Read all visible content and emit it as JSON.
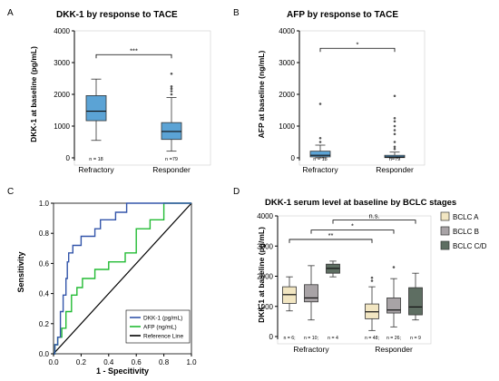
{
  "chart_data": [
    {
      "type": "box",
      "panel_label": "A",
      "title": "DKK-1 by response to TACE",
      "ylabel": "DKK-1 at baseline (pg/mL)",
      "ylim": [
        0,
        4000
      ],
      "yticks": [
        "0",
        "1000",
        "2000",
        "3000",
        "4000"
      ],
      "categories": [
        "Refractory",
        "Responder"
      ],
      "color": "#5BA3D5",
      "boxes": [
        {
          "category": "Refractory",
          "min": 550,
          "q1": 1170,
          "median": 1470,
          "q3": 1960,
          "max": 2480,
          "outliers": [],
          "n_label": "n = 18"
        },
        {
          "category": "Responder",
          "min": 210,
          "q1": 580,
          "median": 830,
          "q3": 1110,
          "max": 1900,
          "outliers": [
            2000,
            2100,
            2180,
            2250,
            2650
          ],
          "n_label": "n =79"
        }
      ],
      "significance": [
        {
          "from": "Refractory",
          "to": "Responder",
          "label": "***",
          "y": 3250
        }
      ]
    },
    {
      "type": "box",
      "panel_label": "B",
      "title": "AFP by response to TACE",
      "ylabel": "AFP at baseline (ng/mL)",
      "ylim": [
        0,
        4000
      ],
      "yticks": [
        "0",
        "1000",
        "2000",
        "3000",
        "4000"
      ],
      "categories": [
        "Refractory",
        "Responder"
      ],
      "color": "#5BA3D5",
      "boxes": [
        {
          "category": "Refractory",
          "min": 0,
          "q1": 30,
          "median": 80,
          "q3": 210,
          "max": 400,
          "outliers": [
            500,
            620,
            1700
          ],
          "n_label": "n = 18"
        },
        {
          "category": "Responder",
          "min": 0,
          "q1": 8,
          "median": 25,
          "q3": 80,
          "max": 180,
          "outliers": [
            280,
            350,
            500,
            750,
            870,
            1000,
            1150,
            1250,
            1950
          ],
          "n_label": "n=79"
        }
      ],
      "significance": [
        {
          "from": "Refractory",
          "to": "Responder",
          "label": "*",
          "y": 3450
        }
      ]
    },
    {
      "type": "line",
      "panel_label": "C",
      "xlabel": "1 - Specitivity",
      "ylabel": "Sensitivity",
      "xlim": [
        0,
        1
      ],
      "ylim": [
        0,
        1
      ],
      "xticks": [
        "0.0",
        "0.2",
        "0.4",
        "0.6",
        "0.8",
        "1.0"
      ],
      "yticks": [
        "0.0",
        "0.2",
        "0.4",
        "0.6",
        "0.8",
        "1.0"
      ],
      "legend_position": "bottom-right",
      "series": [
        {
          "name": "DKK-1 (pg/mL)",
          "color": "#3355AA",
          "points": [
            [
              0,
              0
            ],
            [
              0.01,
              0
            ],
            [
              0.01,
              0.06
            ],
            [
              0.03,
              0.06
            ],
            [
              0.03,
              0.11
            ],
            [
              0.05,
              0.11
            ],
            [
              0.05,
              0.28
            ],
            [
              0.07,
              0.28
            ],
            [
              0.07,
              0.39
            ],
            [
              0.09,
              0.39
            ],
            [
              0.09,
              0.5
            ],
            [
              0.1,
              0.5
            ],
            [
              0.1,
              0.61
            ],
            [
              0.11,
              0.61
            ],
            [
              0.11,
              0.67
            ],
            [
              0.14,
              0.67
            ],
            [
              0.14,
              0.72
            ],
            [
              0.2,
              0.72
            ],
            [
              0.2,
              0.78
            ],
            [
              0.3,
              0.78
            ],
            [
              0.3,
              0.83
            ],
            [
              0.34,
              0.83
            ],
            [
              0.34,
              0.89
            ],
            [
              0.45,
              0.89
            ],
            [
              0.45,
              0.94
            ],
            [
              0.53,
              0.94
            ],
            [
              0.53,
              1.0
            ],
            [
              1.0,
              1.0
            ]
          ]
        },
        {
          "name": "AFP (ng/mL)",
          "color": "#22BB33",
          "points": [
            [
              0,
              0
            ],
            [
              0.01,
              0
            ],
            [
              0.01,
              0.06
            ],
            [
              0.03,
              0.06
            ],
            [
              0.03,
              0.11
            ],
            [
              0.06,
              0.11
            ],
            [
              0.06,
              0.17
            ],
            [
              0.09,
              0.17
            ],
            [
              0.09,
              0.28
            ],
            [
              0.13,
              0.28
            ],
            [
              0.13,
              0.39
            ],
            [
              0.17,
              0.39
            ],
            [
              0.17,
              0.44
            ],
            [
              0.21,
              0.44
            ],
            [
              0.21,
              0.5
            ],
            [
              0.3,
              0.5
            ],
            [
              0.3,
              0.56
            ],
            [
              0.4,
              0.56
            ],
            [
              0.4,
              0.61
            ],
            [
              0.52,
              0.61
            ],
            [
              0.52,
              0.67
            ],
            [
              0.6,
              0.67
            ],
            [
              0.6,
              0.83
            ],
            [
              0.7,
              0.83
            ],
            [
              0.7,
              0.89
            ],
            [
              0.8,
              0.89
            ],
            [
              0.8,
              1.0
            ],
            [
              1.0,
              1.0
            ]
          ]
        },
        {
          "name": "Reference Line",
          "color": "#000000",
          "points": [
            [
              0,
              0
            ],
            [
              1,
              1
            ]
          ]
        }
      ]
    },
    {
      "type": "box",
      "panel_label": "D",
      "title": "DKK-1 serum level at baseline by BCLC stages",
      "ylabel": "DKK-1 at baseline (pg/mL)",
      "ylim": [
        0,
        4000
      ],
      "yticks": [
        "0",
        "1000",
        "2000",
        "3000",
        "4000"
      ],
      "groups": [
        "Refractory",
        "Responder"
      ],
      "legend_position": "right",
      "series": [
        {
          "name": "BCLC A",
          "color": "#F2E6C2"
        },
        {
          "name": "BCLC B",
          "color": "#A8A3A6"
        },
        {
          "name": "BCLC C/D",
          "color": "#5E6E62"
        }
      ],
      "boxes": [
        {
          "group": "Refractory",
          "series": "BCLC A",
          "min": 850,
          "q1": 1100,
          "median": 1390,
          "q3": 1650,
          "max": 1980,
          "outliers": [],
          "n_label": "n = 6;"
        },
        {
          "group": "Refractory",
          "series": "BCLC B",
          "min": 550,
          "q1": 1150,
          "median": 1280,
          "q3": 1720,
          "max": 2350,
          "outliers": [],
          "n_label": "n = 10;"
        },
        {
          "group": "Refractory",
          "series": "BCLC C/D",
          "min": 1980,
          "q1": 2100,
          "median": 2260,
          "q3": 2400,
          "max": 2500,
          "outliers": [],
          "n_label": "n = 4"
        },
        {
          "group": "Responder",
          "series": "BCLC A",
          "min": 200,
          "q1": 590,
          "median": 820,
          "q3": 1080,
          "max": 1650,
          "outliers": [
            1850,
            1950
          ],
          "n_label": "n = 48;"
        },
        {
          "group": "Responder",
          "series": "BCLC B",
          "min": 320,
          "q1": 780,
          "median": 880,
          "q3": 1280,
          "max": 1920,
          "outliers": [
            2300
          ],
          "n_label": "n = 26;"
        },
        {
          "group": "Responder",
          "series": "BCLC C/D",
          "min": 550,
          "q1": 720,
          "median": 980,
          "q3": 1620,
          "max": 2100,
          "outliers": [],
          "n_label": "n = 9"
        }
      ],
      "significance": [
        {
          "from": "Refractory BCLC A",
          "to": "Responder BCLC A",
          "label": "**",
          "y": 3220
        },
        {
          "from": "Refractory BCLC B",
          "to": "Responder BCLC B",
          "label": "*",
          "y": 3530
        },
        {
          "from": "Refractory BCLC C/D",
          "to": "Responder BCLC C/D",
          "label": "n.s.",
          "y": 3860
        }
      ]
    }
  ]
}
